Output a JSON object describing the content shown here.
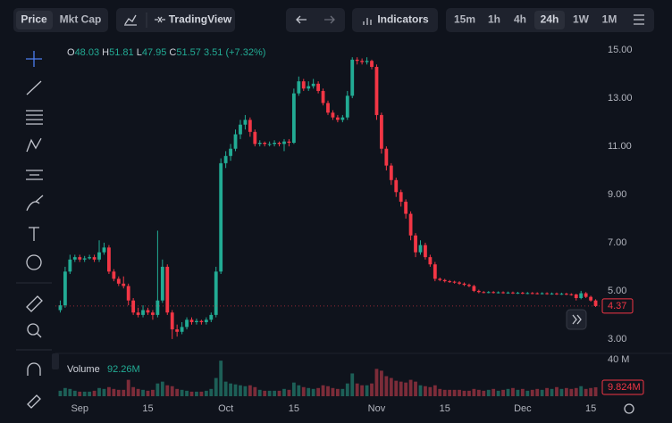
{
  "toolbar": {
    "price": "Price",
    "mkt_cap": "Mkt Cap",
    "tradingview": "TradingView",
    "indicators": "Indicators",
    "intervals": [
      "15m",
      "1h",
      "4h",
      "24h",
      "1W",
      "1M"
    ],
    "active_interval": 3
  },
  "chart_data": {
    "type": "candlestick",
    "legend": {
      "o_label": "O",
      "o": 48.03,
      "h_label": "H",
      "h": 51.81,
      "l_label": "L",
      "l": 47.95,
      "c_label": "C",
      "c": 51.57,
      "change": 3.51,
      "change_pct": {
        "value": 7.32,
        "label": "(+7.32%)"
      }
    },
    "volume_title": "Volume",
    "volume_total": "92.26M",
    "volume_last_label": "9.824M",
    "up_color": "#22ab94",
    "down_color": "#f23645",
    "volume_up_color": "#1d5f57",
    "volume_down_color": "#7c2c39",
    "xlim": [
      "Aug 27",
      "Dec 17"
    ],
    "xticks": [
      {
        "value": "Sep 1",
        "label": "Sep"
      },
      {
        "value": "Sep 15",
        "label": "15"
      },
      {
        "value": "Oct 1",
        "label": "Oct"
      },
      {
        "value": "Oct 15",
        "label": "15"
      },
      {
        "value": "Nov 1",
        "label": "Nov"
      },
      {
        "value": "Nov 15",
        "label": "15"
      },
      {
        "value": "Dec 1",
        "label": "Dec"
      },
      {
        "value": "Dec 15",
        "label": "15"
      }
    ],
    "ylim": [
      2.44,
      15.41
    ],
    "yticks": [
      {
        "value": 15,
        "label": "15.00"
      },
      {
        "value": 13,
        "label": "13.00"
      },
      {
        "value": 11,
        "label": "11.00"
      },
      {
        "value": 9,
        "label": "9.00"
      },
      {
        "value": 7,
        "label": "7.00"
      },
      {
        "value": 5,
        "label": "5.00"
      },
      {
        "value": 3,
        "label": "3.00"
      }
    ],
    "volume_ylim": [
      0,
      45
    ],
    "volume_yticks": [
      {
        "value": 40,
        "label": "40 M"
      }
    ],
    "grid": false,
    "x": [
      "Aug 28",
      "Aug 29",
      "Aug 30",
      "Aug 31",
      "Sep 1",
      "Sep 2",
      "Sep 3",
      "Sep 4",
      "Sep 5",
      "Sep 6",
      "Sep 7",
      "Sep 8",
      "Sep 9",
      "Sep 10",
      "Sep 11",
      "Sep 12",
      "Sep 13",
      "Sep 14",
      "Sep 15",
      "Sep 16",
      "Sep 17",
      "Sep 18",
      "Sep 19",
      "Sep 20",
      "Sep 21",
      "Sep 22",
      "Sep 23",
      "Sep 24",
      "Sep 25",
      "Sep 26",
      "Sep 27",
      "Sep 28",
      "Sep 29",
      "Sep 30",
      "Oct 1",
      "Oct 2",
      "Oct 3",
      "Oct 4",
      "Oct 5",
      "Oct 6",
      "Oct 7",
      "Oct 8",
      "Oct 9",
      "Oct 10",
      "Oct 11",
      "Oct 12",
      "Oct 13",
      "Oct 14",
      "Oct 15",
      "Oct 16",
      "Oct 17",
      "Oct 18",
      "Oct 19",
      "Oct 20",
      "Oct 21",
      "Oct 22",
      "Oct 23",
      "Oct 24",
      "Oct 25",
      "Oct 26",
      "Oct 27",
      "Oct 28",
      "Oct 29",
      "Oct 30",
      "Oct 31",
      "Nov 1",
      "Nov 2",
      "Nov 3",
      "Nov 4",
      "Nov 5",
      "Nov 6",
      "Nov 7",
      "Nov 8",
      "Nov 9",
      "Nov 10",
      "Nov 11",
      "Nov 12",
      "Nov 13",
      "Nov 14",
      "Nov 15",
      "Nov 16",
      "Nov 17",
      "Nov 18",
      "Nov 19",
      "Nov 20",
      "Nov 21",
      "Nov 22",
      "Nov 23",
      "Nov 24",
      "Nov 25",
      "Nov 26",
      "Nov 27",
      "Nov 28",
      "Nov 29",
      "Nov 30",
      "Dec 1",
      "Dec 2",
      "Dec 3",
      "Dec 4",
      "Dec 5",
      "Dec 6",
      "Dec 7",
      "Dec 8",
      "Dec 9",
      "Dec 10",
      "Dec 11",
      "Dec 12",
      "Dec 13",
      "Dec 14",
      "Dec 15",
      "Dec 16"
    ],
    "open": [
      4.2,
      4.4,
      5.8,
      6.3,
      6.4,
      6.3,
      6.35,
      6.4,
      6.3,
      6.6,
      6.8,
      5.8,
      5.5,
      5.3,
      5.2,
      4.6,
      4.1,
      4.0,
      4.2,
      4.1,
      4.0,
      4.6,
      6.0,
      4.1,
      3.4,
      3.3,
      3.5,
      3.8,
      3.7,
      3.75,
      3.7,
      3.8,
      4.0,
      5.8,
      10.3,
      10.6,
      10.9,
      11.5,
      11.9,
      12.1,
      11.6,
      11.1,
      11.15,
      11.1,
      11.1,
      11.15,
      11.1,
      11.2,
      11.15,
      13.2,
      13.7,
      13.4,
      13.5,
      13.6,
      13.3,
      12.8,
      12.4,
      12.2,
      12.1,
      12.2,
      13.1,
      14.6,
      14.55,
      14.5,
      14.55,
      14.3,
      12.3,
      10.9,
      10.2,
      9.6,
      9.1,
      8.7,
      8.2,
      7.3,
      6.6,
      6.9,
      6.4,
      6.1,
      5.5,
      5.45,
      5.4,
      5.38,
      5.35,
      5.3,
      5.25,
      5.2,
      5.0,
      4.95,
      4.94,
      4.95,
      4.93,
      4.94,
      4.92,
      4.93,
      4.91,
      4.92,
      4.9,
      4.91,
      4.9,
      4.89,
      4.9,
      4.88,
      4.89,
      4.87,
      4.88,
      4.86,
      4.85,
      4.7,
      4.9,
      4.75,
      4.6
    ],
    "high": [
      4.6,
      6.0,
      6.5,
      6.5,
      6.5,
      6.45,
      6.5,
      6.5,
      7.1,
      7.0,
      6.9,
      5.9,
      5.6,
      5.6,
      5.3,
      4.7,
      4.3,
      4.4,
      4.3,
      4.2,
      7.5,
      6.3,
      6.1,
      4.2,
      3.6,
      3.7,
      3.9,
      3.9,
      3.85,
      3.8,
      3.9,
      4.1,
      6.0,
      10.5,
      10.8,
      11.1,
      11.7,
      12.1,
      12.3,
      12.2,
      11.7,
      11.25,
      11.2,
      11.2,
      11.25,
      11.2,
      11.3,
      11.3,
      13.4,
      13.9,
      13.8,
      13.7,
      13.8,
      13.7,
      13.4,
      12.9,
      12.5,
      12.3,
      12.3,
      13.3,
      14.7,
      14.7,
      14.65,
      14.7,
      14.6,
      14.4,
      12.4,
      11.0,
      10.3,
      9.7,
      9.2,
      8.8,
      8.3,
      7.4,
      7.1,
      7.0,
      6.5,
      6.2,
      5.55,
      5.5,
      5.45,
      5.42,
      5.4,
      5.35,
      5.3,
      5.25,
      5.05,
      4.99,
      4.99,
      4.99,
      4.98,
      4.98,
      4.97,
      4.97,
      4.96,
      4.96,
      4.95,
      4.95,
      4.94,
      4.94,
      4.94,
      4.93,
      4.93,
      4.92,
      4.92,
      4.9,
      4.88,
      5.0,
      4.95,
      4.8,
      4.65
    ],
    "low": [
      4.1,
      4.3,
      5.7,
      6.2,
      6.2,
      6.2,
      6.3,
      6.2,
      6.2,
      6.5,
      5.7,
      5.4,
      5.2,
      5.1,
      4.4,
      4.0,
      3.9,
      3.9,
      4.0,
      3.8,
      3.9,
      4.5,
      4.0,
      3.0,
      3.1,
      3.2,
      3.4,
      3.6,
      3.6,
      3.6,
      3.6,
      3.7,
      3.9,
      5.7,
      10.1,
      10.4,
      10.8,
      11.3,
      11.7,
      11.4,
      11.0,
      11.0,
      11.0,
      11.0,
      11.0,
      11.0,
      10.8,
      11.0,
      11.1,
      13.1,
      13.3,
      13.3,
      13.4,
      13.2,
      12.7,
      12.3,
      12.1,
      12.0,
      12.0,
      12.1,
      13.0,
      14.4,
      14.4,
      14.4,
      14.2,
      12.1,
      10.7,
      10.0,
      9.4,
      8.9,
      8.5,
      8.0,
      7.1,
      6.4,
      6.5,
      6.3,
      6.0,
      5.4,
      5.4,
      5.35,
      5.33,
      5.3,
      5.25,
      5.2,
      5.15,
      4.95,
      4.9,
      4.9,
      4.9,
      4.89,
      4.89,
      4.88,
      4.88,
      4.87,
      4.87,
      4.86,
      4.86,
      4.86,
      4.85,
      4.85,
      4.84,
      4.84,
      4.83,
      4.83,
      4.82,
      4.8,
      4.6,
      4.65,
      4.7,
      4.55,
      4.33
    ],
    "close": [
      4.4,
      5.8,
      6.3,
      6.4,
      6.3,
      6.35,
      6.4,
      6.3,
      6.6,
      6.8,
      5.8,
      5.5,
      5.3,
      5.2,
      4.6,
      4.1,
      4.0,
      4.2,
      4.1,
      4.0,
      4.6,
      6.0,
      4.1,
      3.4,
      3.3,
      3.5,
      3.8,
      3.7,
      3.75,
      3.7,
      3.8,
      4.0,
      5.8,
      10.3,
      10.6,
      10.9,
      11.5,
      11.9,
      12.1,
      11.6,
      11.1,
      11.15,
      11.1,
      11.1,
      11.15,
      11.1,
      11.2,
      11.15,
      13.2,
      13.7,
      13.4,
      13.5,
      13.6,
      13.3,
      12.8,
      12.4,
      12.2,
      12.1,
      12.2,
      13.1,
      14.6,
      14.55,
      14.5,
      14.55,
      14.3,
      12.3,
      10.9,
      10.2,
      9.6,
      9.1,
      8.7,
      8.2,
      7.3,
      6.6,
      6.9,
      6.4,
      6.1,
      5.5,
      5.45,
      5.4,
      5.38,
      5.35,
      5.3,
      5.25,
      5.2,
      5.0,
      4.95,
      4.94,
      4.95,
      4.93,
      4.94,
      4.92,
      4.93,
      4.91,
      4.92,
      4.9,
      4.91,
      4.9,
      4.89,
      4.9,
      4.88,
      4.89,
      4.87,
      4.88,
      4.86,
      4.85,
      4.7,
      4.9,
      4.75,
      4.6,
      4.37
    ],
    "volume": [
      6,
      9,
      8,
      6,
      5,
      5,
      5,
      6,
      9,
      8,
      10,
      8,
      7,
      7,
      18,
      10,
      8,
      7,
      6,
      7,
      14,
      16,
      12,
      11,
      8,
      7,
      6,
      5,
      5,
      5,
      6,
      8,
      20,
      39,
      16,
      14,
      13,
      12,
      11,
      12,
      10,
      7,
      6,
      6,
      6,
      6,
      8,
      7,
      15,
      12,
      10,
      9,
      8,
      9,
      12,
      11,
      9,
      8,
      8,
      14,
      25,
      14,
      12,
      12,
      14,
      30,
      28,
      22,
      20,
      17,
      16,
      15,
      18,
      16,
      12,
      11,
      10,
      12,
      8,
      7,
      7,
      7,
      7,
      6,
      6,
      8,
      7,
      6,
      7,
      8,
      6,
      7,
      8,
      9,
      7,
      8,
      6,
      7,
      8,
      7,
      9,
      8,
      10,
      8,
      9,
      8,
      9,
      11,
      8,
      9,
      9.824
    ]
  }
}
